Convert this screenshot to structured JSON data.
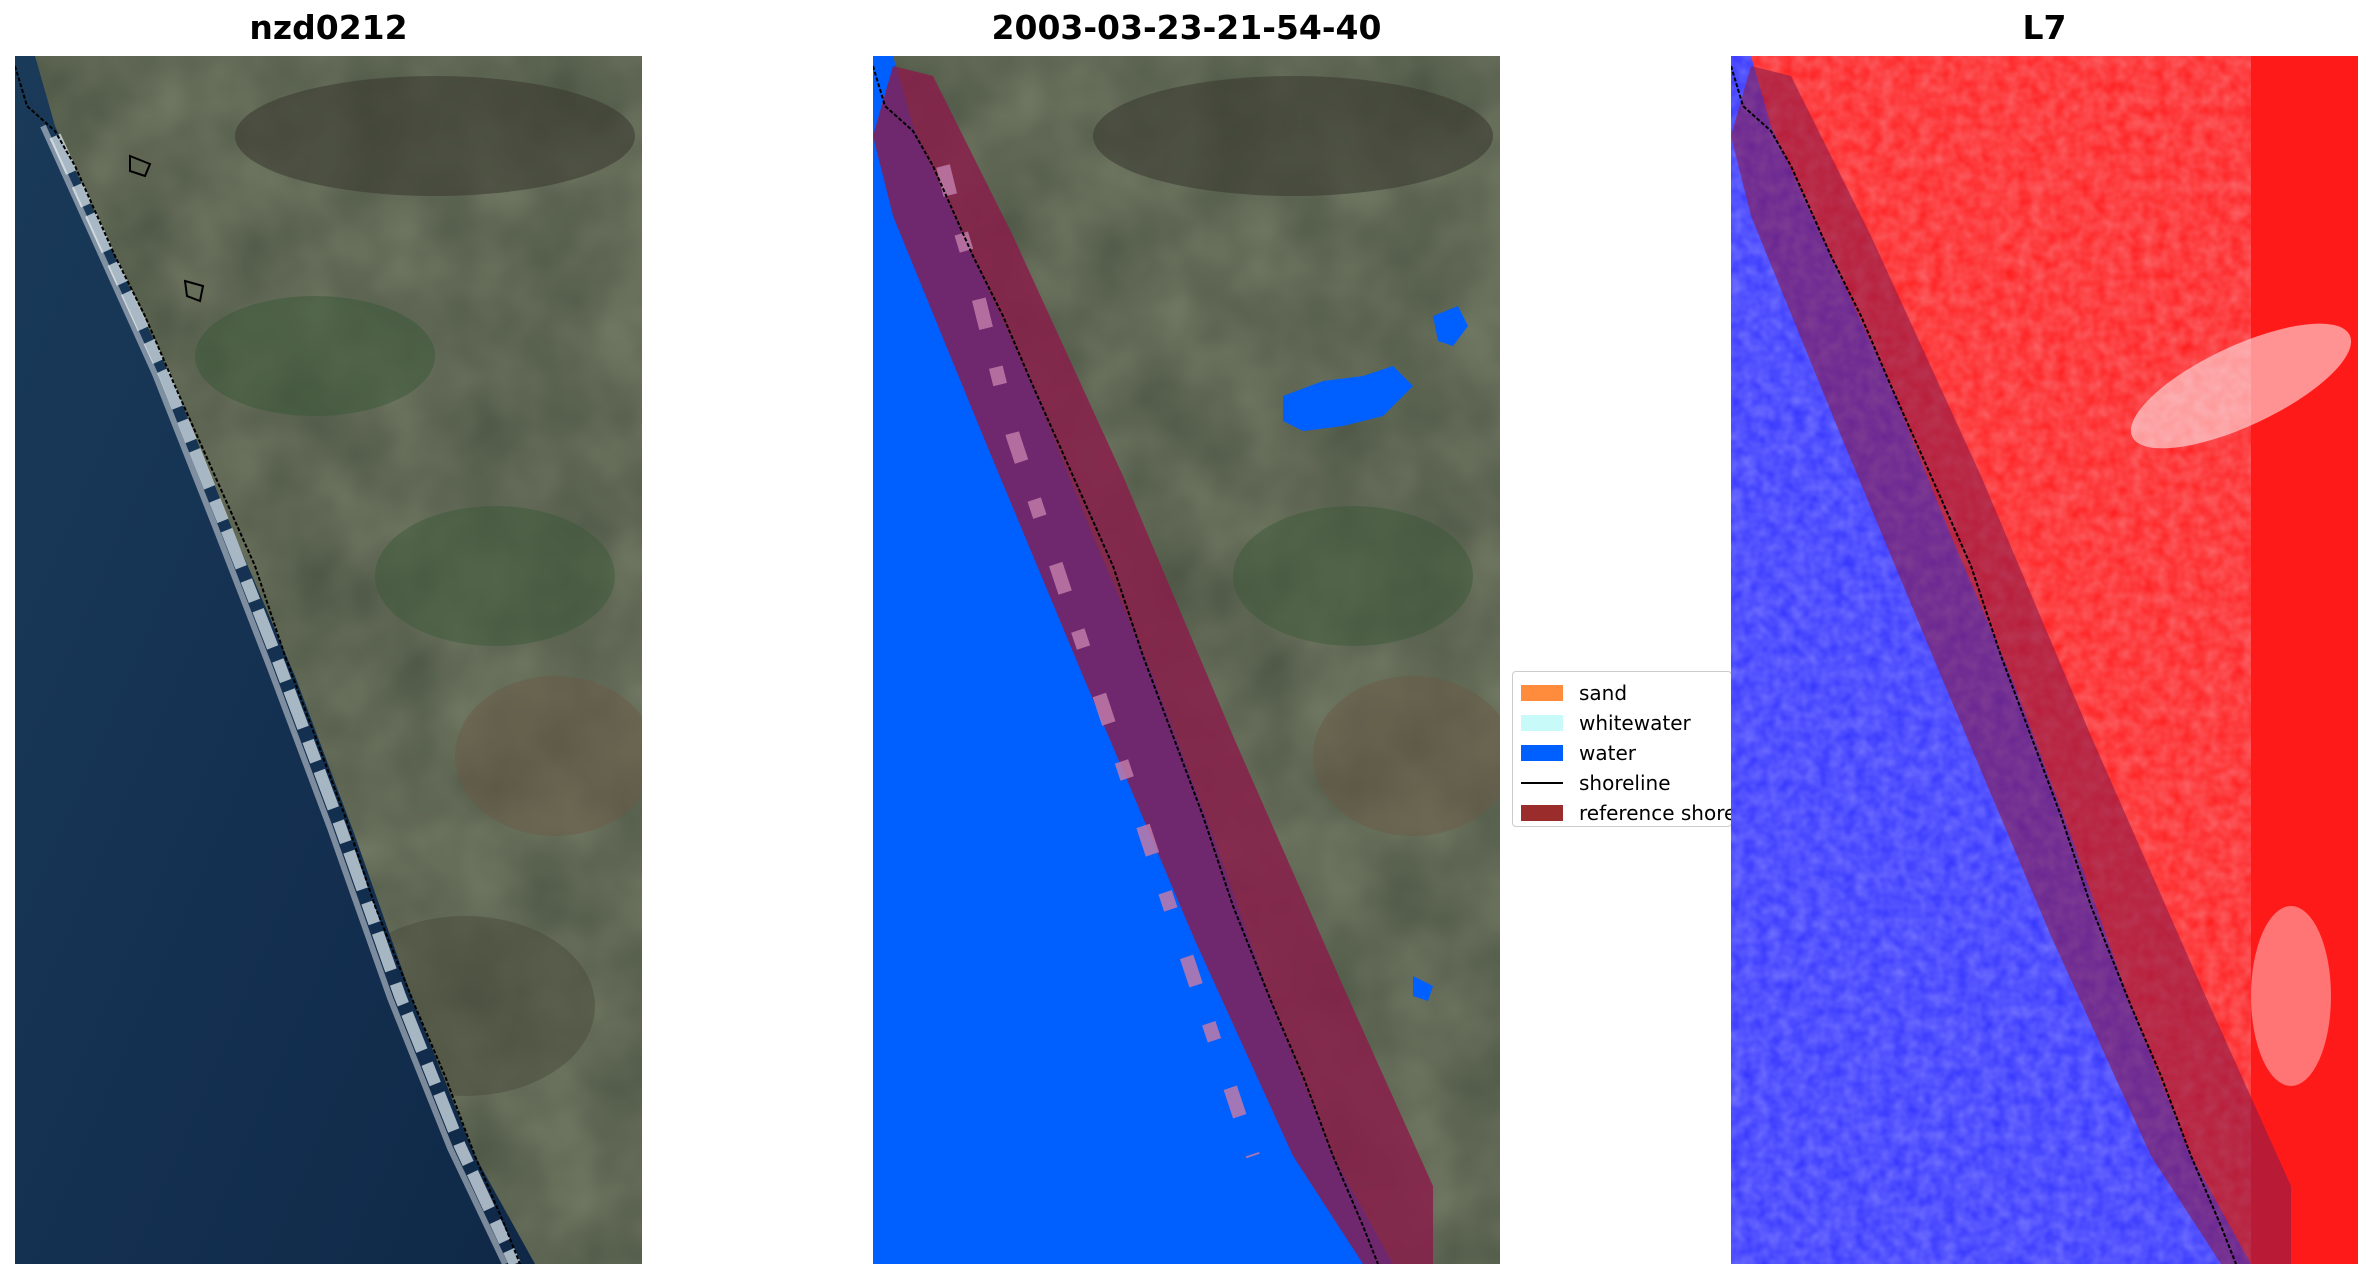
{
  "panels": [
    {
      "title": "nzd0212",
      "content": "rgb-satellite-image"
    },
    {
      "title": "2003-03-23-21-54-40",
      "content": "classified-overlay"
    },
    {
      "title": "L7",
      "content": "index-heatmap"
    }
  ],
  "legend": {
    "items": [
      {
        "label": "sand",
        "color": "#ff8c3c"
      },
      {
        "label": "whitewater",
        "color": "#c8fafa"
      },
      {
        "label": "water",
        "color": "#0060ff"
      },
      {
        "label": "shoreline",
        "color": "#000000"
      },
      {
        "label": "reference shoreline buffer",
        "color": "#9b2c2c"
      }
    ]
  },
  "colors": {
    "ocean": "#13294a",
    "land": "#4a5040",
    "water_class": "#0060ff",
    "buffer": "#8b1a4a",
    "index_positive": "#ff1a1a",
    "index_negative": "#3030ff"
  }
}
